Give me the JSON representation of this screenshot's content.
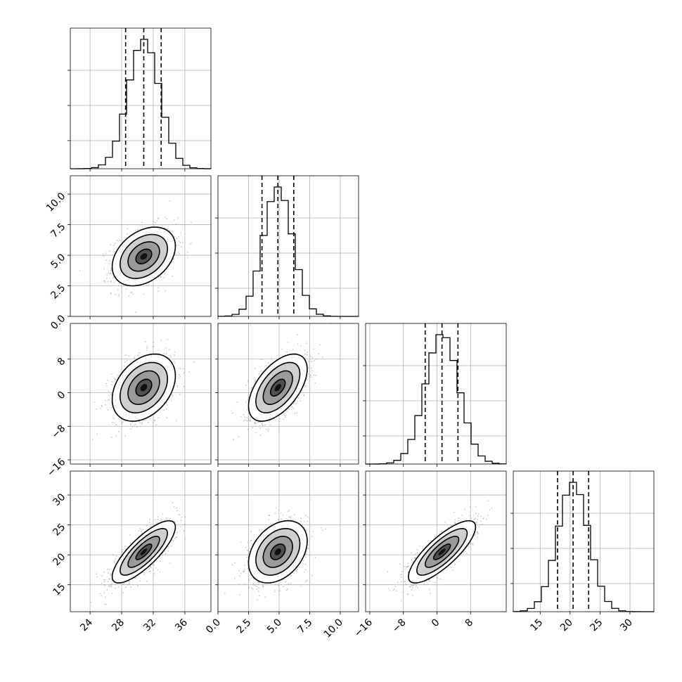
{
  "chart_data": {
    "type": "corner",
    "variables": [
      {
        "ticks": [
          24,
          28,
          32,
          36
        ],
        "tick_labels": [
          "24",
          "28",
          "32",
          "36"
        ],
        "range": [
          21.5,
          39.3
        ],
        "mean": 30.8,
        "sd": 2.0,
        "quantiles": [
          28.5,
          30.8,
          33.0
        ]
      },
      {
        "ticks": [
          0.0,
          2.5,
          5.0,
          7.5,
          10.0
        ],
        "tick_labels": [
          "0.0",
          "2.5",
          "5.0",
          "7.5",
          "10.0"
        ],
        "range": [
          0.0,
          11.5
        ],
        "mean": 4.9,
        "sd": 1.2,
        "quantiles": [
          3.6,
          4.9,
          6.2
        ]
      },
      {
        "ticks": [
          -16,
          -8,
          0,
          8
        ],
        "tick_labels": [
          "−16",
          "−8",
          "0",
          "8"
        ],
        "range": [
          -17.0,
          16.5
        ],
        "mean": 1.2,
        "sd": 4.0,
        "quantiles": [
          -2.8,
          1.2,
          5.0
        ]
      },
      {
        "ticks": [
          15,
          20,
          25,
          30
        ],
        "tick_labels": [
          "15",
          "20",
          "25",
          "30"
        ],
        "range": [
          10.5,
          34.0
        ],
        "mean": 20.5,
        "sd": 2.6,
        "quantiles": [
          17.9,
          20.5,
          23.1
        ]
      }
    ],
    "correlations": [
      [
        1,
        0.35,
        0.35,
        0.8
      ],
      [
        0.35,
        1,
        0.55,
        0.35
      ],
      [
        0.35,
        0.55,
        1,
        0.8
      ],
      [
        0.8,
        0.35,
        0.8,
        1
      ]
    ],
    "histogram_bins": 20,
    "contour_levels": [
      "0.5-sigma",
      "1-sigma",
      "1.5-sigma",
      "2-sigma"
    ],
    "quantile_line_style": "dashed",
    "grid": true,
    "colors": {
      "line": "#000000",
      "grid": "#b0b0b0",
      "points": "#9a9a9a"
    },
    "title": "",
    "xlabel": "",
    "ylabel": ""
  }
}
